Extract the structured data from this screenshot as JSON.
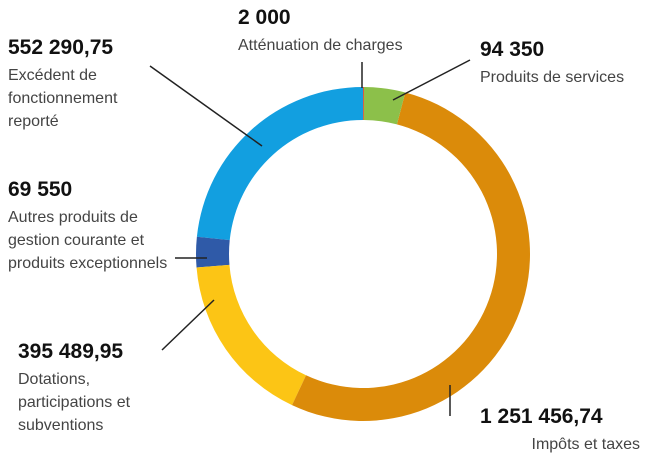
{
  "chart_data": {
    "type": "donut",
    "categories": [
      "Atténuation de charges",
      "Produits de services",
      "Impôts et taxes",
      "Dotations, participations et subventions",
      "Autres produits de gestion courante et produits exceptionnels",
      "Excédent de fonctionnement reporté"
    ],
    "values": [
      2000,
      94350,
      1251456.74,
      395489.95,
      69550,
      552290.75
    ],
    "value_labels": [
      "2 000",
      "94 350",
      "1 251 456,74",
      "395 489,95",
      "69 550",
      "552 290,75"
    ],
    "colors": [
      "#d9412b",
      "#8cc04a",
      "#db8b0a",
      "#fcc515",
      "#2f5aa8",
      "#129fe0"
    ]
  }
}
